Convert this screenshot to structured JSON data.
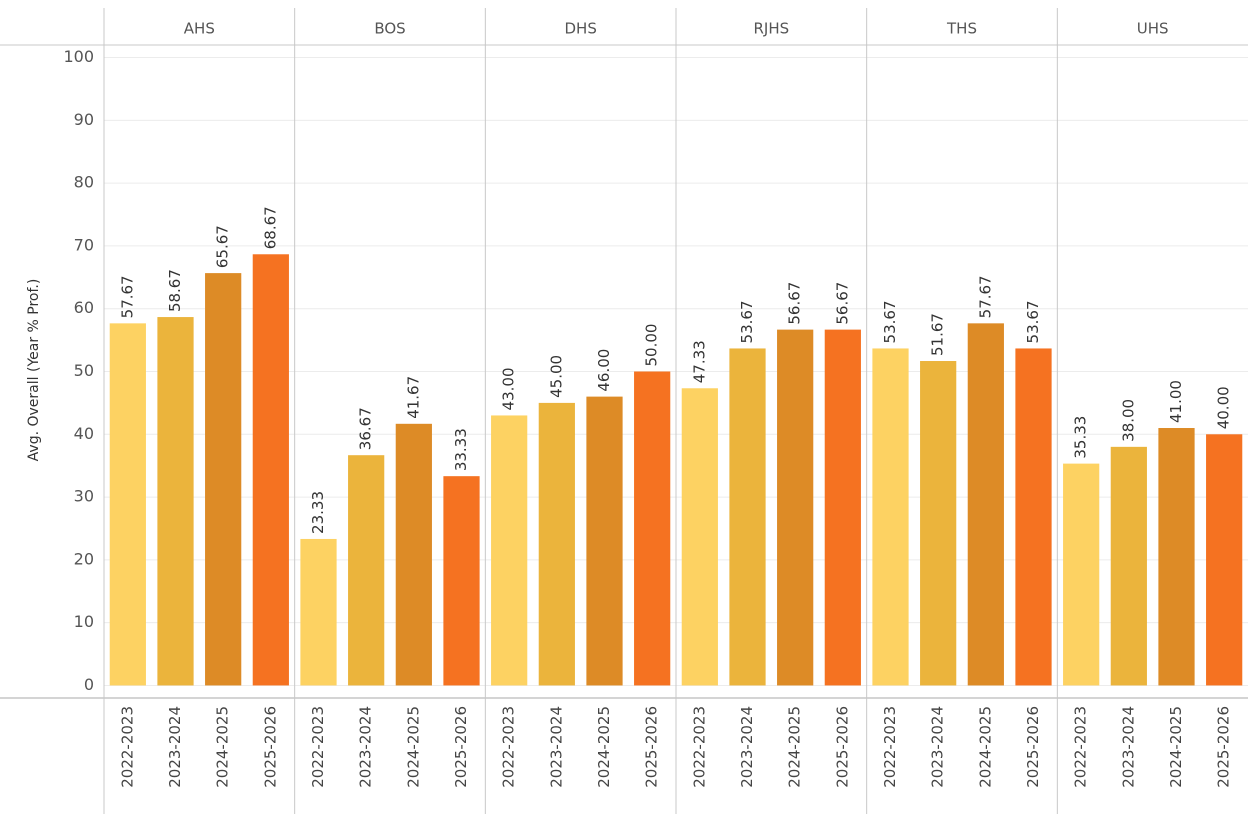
{
  "chart_data": {
    "type": "bar",
    "y_label": "Avg. Overall (Year % Prof.)",
    "groups": [
      "AHS",
      "BOS",
      "DHS",
      "RJHS",
      "THS",
      "UHS"
    ],
    "series": [
      {
        "name": "2022-2023",
        "color": "#fdd262",
        "values": [
          57.67,
          23.33,
          43,
          47.33,
          53.67,
          35.33
        ],
        "value_labels": [
          "57.67",
          "23.33",
          "43.00",
          "47.33",
          "53.67",
          "35.33"
        ]
      },
      {
        "name": "2023-2024",
        "color": "#ebb43c",
        "values": [
          58.67,
          36.67,
          45,
          53.67,
          51.67,
          38
        ],
        "value_labels": [
          "58.67",
          "36.67",
          "45.00",
          "53.67",
          "51.67",
          "38.00"
        ]
      },
      {
        "name": "2024-2025",
        "color": "#dd8b26",
        "values": [
          65.67,
          41.67,
          46,
          56.67,
          57.67,
          41
        ],
        "value_labels": [
          "65.67",
          "41.67",
          "46.00",
          "56.67",
          "57.67",
          "41.00"
        ]
      },
      {
        "name": "2025-2026",
        "color": "#f57221",
        "values": [
          68.67,
          33.33,
          50,
          56.67,
          53.67,
          40
        ],
        "value_labels": [
          "68.67",
          "33.33",
          "50.00",
          "56.67",
          "53.67",
          "40.00"
        ]
      }
    ],
    "ylim": [
      -2,
      102
    ],
    "yticks": [
      0,
      10,
      20,
      30,
      40,
      50,
      60,
      70,
      80,
      90,
      100
    ],
    "grid": true
  }
}
